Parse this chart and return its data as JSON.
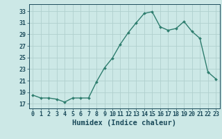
{
  "x": [
    0,
    1,
    2,
    3,
    4,
    5,
    6,
    7,
    8,
    9,
    10,
    11,
    12,
    13,
    14,
    15,
    16,
    17,
    18,
    19,
    20,
    21,
    22,
    23
  ],
  "y": [
    18.5,
    18.0,
    18.0,
    17.8,
    17.3,
    18.0,
    18.0,
    18.0,
    20.8,
    23.2,
    24.9,
    27.3,
    29.3,
    31.0,
    32.6,
    32.9,
    30.3,
    29.7,
    30.0,
    31.2,
    29.5,
    28.3,
    22.5,
    21.3
  ],
  "line_color": "#2e7d6e",
  "marker": "D",
  "marker_size": 2.0,
  "bg_color": "#cce8e6",
  "grid_color": "#b0d0ce",
  "xlabel": "Humidex (Indice chaleur)",
  "ylabel_ticks": [
    17,
    19,
    21,
    23,
    25,
    27,
    29,
    31,
    33
  ],
  "xlim": [
    -0.5,
    23.5
  ],
  "ylim": [
    16.2,
    34.2
  ],
  "xlabel_color": "#1a4a5a",
  "tick_color": "#1a4a5a",
  "label_fontsize": 7.5,
  "tick_fontsize": 6.0,
  "linewidth": 1.0
}
